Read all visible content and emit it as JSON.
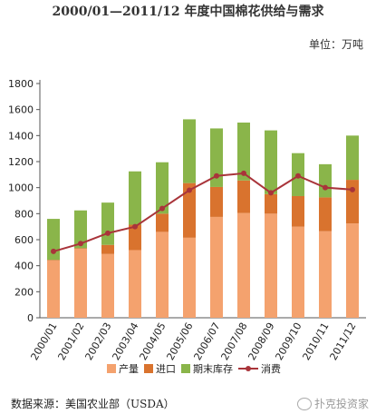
{
  "title": "2000/01—2011/12 年度中国棉花供给与需求",
  "unit_label": "单位：万吨",
  "source_label": "数据来源：美国农业部（USDA）",
  "brand_label": "扑克投资家",
  "colors": {
    "production": "#f4a26e",
    "imports": "#d9732e",
    "ending_stocks": "#8ab54a",
    "consumption": "#a9343a",
    "axis": "#555555"
  },
  "chart_data": {
    "type": "bar",
    "stacked": true,
    "title": "2000/01—2011/12 年度中国棉花供给与需求",
    "xlabel": "",
    "ylabel": "",
    "ylim": [
      0,
      1800
    ],
    "yticks": [
      0,
      200,
      400,
      600,
      800,
      1000,
      1200,
      1400,
      1600,
      1800
    ],
    "grid": false,
    "legend_position": "bottom",
    "categories": [
      "2000/01",
      "2001/02",
      "2002/03",
      "2003/04",
      "2004/05",
      "2005/06",
      "2006/07",
      "2007/08",
      "2008/09",
      "2009/10",
      "2010/11",
      "2011/12"
    ],
    "series": [
      {
        "name": "产量",
        "type": "bar",
        "values": [
          440,
          530,
          490,
          520,
          660,
          615,
          775,
          805,
          800,
          700,
          665,
          725
        ]
      },
      {
        "name": "进口",
        "type": "bar",
        "values": [
          5,
          5,
          70,
          195,
          140,
          420,
          230,
          250,
          150,
          235,
          260,
          335
        ]
      },
      {
        "name": "期末库存",
        "type": "bar",
        "values": [
          315,
          290,
          325,
          410,
          395,
          490,
          450,
          445,
          490,
          330,
          255,
          340
        ]
      },
      {
        "name": "消费",
        "type": "line",
        "values": [
          510,
          570,
          650,
          700,
          840,
          980,
          1090,
          1110,
          960,
          1090,
          1000,
          985
        ]
      }
    ]
  }
}
